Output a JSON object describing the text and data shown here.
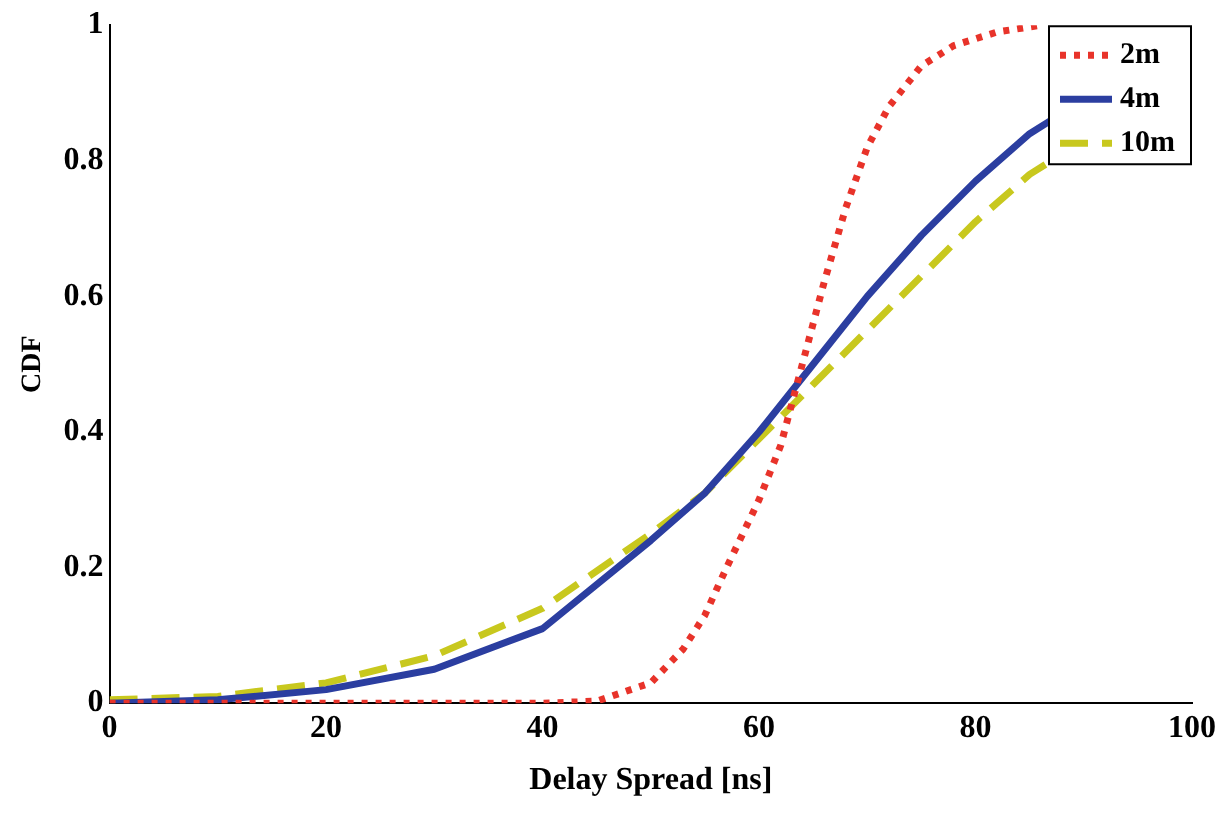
{
  "chart_data": {
    "type": "line",
    "xlabel": "Delay Spread [ns]",
    "ylabel": "CDF",
    "xlim": [
      0,
      100
    ],
    "xticks": [
      0,
      20,
      40,
      60,
      80,
      100
    ],
    "ylim": [
      0,
      1
    ],
    "yticks": [
      0,
      0.2,
      0.4,
      0.6,
      0.8,
      1
    ],
    "grid": false,
    "legend": "top right",
    "marker": "none",
    "series": [
      {
        "name": "2m",
        "color": "#e8332a",
        "line_style": "dotted",
        "x": [
          0,
          40,
          45,
          50,
          53,
          55,
          57,
          60,
          62,
          64,
          66,
          68,
          70,
          72,
          75,
          78,
          82,
          86
        ],
        "values": [
          0,
          0,
          0.003,
          0.03,
          0.08,
          0.13,
          0.2,
          0.3,
          0.38,
          0.5,
          0.62,
          0.73,
          0.82,
          0.88,
          0.94,
          0.97,
          0.99,
          1
        ]
      },
      {
        "name": "4m",
        "color": "#2b3ea0",
        "line_style": "solid",
        "x": [
          0,
          10,
          20,
          30,
          40,
          50,
          55,
          60,
          65,
          70,
          75,
          80,
          85,
          87
        ],
        "values": [
          0,
          0.005,
          0.02,
          0.05,
          0.11,
          0.24,
          0.31,
          0.4,
          0.5,
          0.6,
          0.69,
          0.77,
          0.84,
          0.86
        ]
      },
      {
        "name": "10m",
        "color": "#c8c81e",
        "line_style": "dashed",
        "x": [
          0,
          10,
          20,
          30,
          40,
          50,
          55,
          60,
          65,
          70,
          75,
          80,
          85,
          87
        ],
        "values": [
          0.005,
          0.01,
          0.03,
          0.07,
          0.14,
          0.25,
          0.31,
          0.39,
          0.47,
          0.55,
          0.63,
          0.71,
          0.78,
          0.8
        ]
      }
    ]
  }
}
